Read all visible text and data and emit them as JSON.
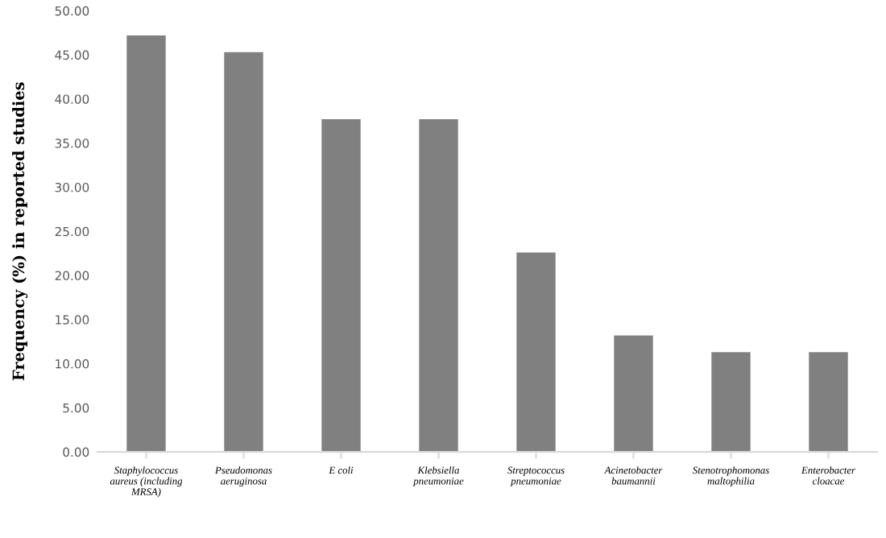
{
  "chart_data": {
    "type": "bar",
    "ylabel": "Frequency (%) in reported studies",
    "categories": [
      "Staphylococcus\naureus (including\nMRSA)",
      "Pseudomonas\naeruginosa",
      "E coli",
      "Klebsiella\npneumoniae",
      "Streptococcus\npneumoniae",
      "Acinetobacter\nbaumannii",
      "Stenotrophomonas\nmaltophilia",
      "Enterobacter\ncloacae"
    ],
    "values": [
      47.2,
      45.3,
      37.7,
      37.7,
      22.6,
      13.2,
      11.3,
      11.3
    ],
    "color": "#808080",
    "ylim": [
      0,
      50
    ],
    "yticks": [
      {
        "value": 0,
        "label": "0.00"
      },
      {
        "value": 5,
        "label": "5.00"
      },
      {
        "value": 10,
        "label": "10.00"
      },
      {
        "value": 15,
        "label": "15.00"
      },
      {
        "value": 20,
        "label": "20.00"
      },
      {
        "value": 25,
        "label": "25.00"
      },
      {
        "value": 30,
        "label": "30.00"
      },
      {
        "value": 35,
        "label": "35.00"
      },
      {
        "value": 40,
        "label": "40.00"
      },
      {
        "value": 45,
        "label": "45.00"
      },
      {
        "value": 50,
        "label": "50.00"
      }
    ],
    "grid": false
  }
}
